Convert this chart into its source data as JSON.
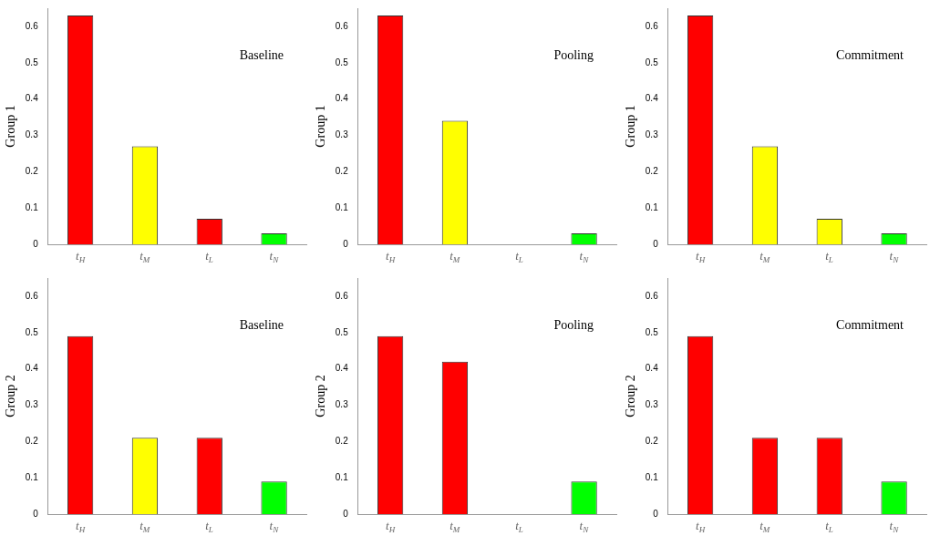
{
  "chart_data": [
    {
      "type": "bar",
      "annotations": [
        "Baseline"
      ],
      "ylabel": "Group 1",
      "categories": [
        "t$_{H}$",
        "t$_{M}$",
        "t$_{L}$",
        "t$_{N}$"
      ],
      "values": [
        0.63,
        0.27,
        0.07,
        0.03
      ],
      "colors": [
        "#ff0000",
        "#ffff00",
        "#ff0000",
        "#00ff00"
      ],
      "ylim": [
        0,
        0.65
      ],
      "yticks": [
        0,
        0.1,
        0.2,
        0.3,
        0.4,
        0.5,
        0.6
      ],
      "grid": false,
      "legend": false
    },
    {
      "type": "bar",
      "annotations": [
        "Pooling"
      ],
      "ylabel": "Group 1",
      "categories": [
        "t$_{H}$",
        "t$_{M}$",
        "t$_{L}$",
        "t$_{N}$"
      ],
      "values": [
        0.63,
        0.34,
        0,
        0.03
      ],
      "colors": [
        "#ff0000",
        "#ffff00",
        "#ff0000",
        "#00ff00"
      ],
      "ylim": [
        0,
        0.65
      ],
      "yticks": [
        0,
        0.1,
        0.2,
        0.3,
        0.4,
        0.5,
        0.6
      ],
      "grid": false,
      "legend": false
    },
    {
      "type": "bar",
      "annotations": [
        "Commitment"
      ],
      "ylabel": "Group 1",
      "categories": [
        "t$_{H}$",
        "t$_{M}$",
        "t$_{L}$",
        "t$_{N}$"
      ],
      "values": [
        0.63,
        0.27,
        0.07,
        0.03
      ],
      "colors": [
        "#ff0000",
        "#ffff00",
        "#ffff00",
        "#00ff00"
      ],
      "ylim": [
        0,
        0.65
      ],
      "yticks": [
        0,
        0.1,
        0.2,
        0.3,
        0.4,
        0.5,
        0.6
      ],
      "grid": false,
      "legend": false
    },
    {
      "type": "bar",
      "annotations": [
        "Baseline"
      ],
      "ylabel": "Group 2",
      "categories": [
        "t$_{H}$",
        "t$_{M}$",
        "t$_{L}$",
        "t$_{N}$"
      ],
      "values": [
        0.49,
        0.21,
        0.21,
        0.09
      ],
      "colors": [
        "#ff0000",
        "#ffff00",
        "#ff0000",
        "#00ff00"
      ],
      "ylim": [
        0,
        0.65
      ],
      "yticks": [
        0,
        0.1,
        0.2,
        0.3,
        0.4,
        0.5,
        0.6
      ],
      "grid": false,
      "legend": false
    },
    {
      "type": "bar",
      "annotations": [
        "Pooling"
      ],
      "ylabel": "Group 2",
      "categories": [
        "t$_{H}$",
        "t$_{M}$",
        "t$_{L}$",
        "t$_{N}$"
      ],
      "values": [
        0.49,
        0.42,
        0,
        0.09
      ],
      "colors": [
        "#ff0000",
        "#ff0000",
        "#ff0000",
        "#00ff00"
      ],
      "ylim": [
        0,
        0.65
      ],
      "yticks": [
        0,
        0.1,
        0.2,
        0.3,
        0.4,
        0.5,
        0.6
      ],
      "grid": false,
      "legend": false
    },
    {
      "type": "bar",
      "annotations": [
        "Commitment"
      ],
      "ylabel": "Group 2",
      "categories": [
        "t$_{H}$",
        "t$_{M}$",
        "t$_{L}$",
        "t$_{N}$"
      ],
      "values": [
        0.49,
        0.21,
        0.21,
        0.09
      ],
      "colors": [
        "#ff0000",
        "#ff0000",
        "#ff0000",
        "#00ff00"
      ],
      "ylim": [
        0,
        0.65
      ],
      "yticks": [
        0,
        0.1,
        0.2,
        0.3,
        0.4,
        0.5,
        0.6
      ],
      "grid": false,
      "legend": false
    }
  ]
}
